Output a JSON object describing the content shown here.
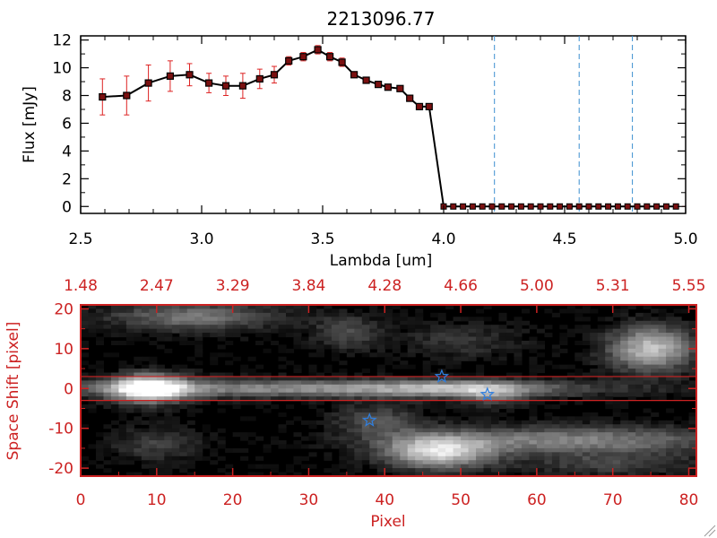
{
  "colors": {
    "axis_black": "#000000",
    "axis_red": "#cc2222",
    "errorbar_red": "#dd2222",
    "marker_fill": "#7a1010",
    "dash_blue": "#3b8fd0",
    "star_blue": "#2f7fe0",
    "spectrum_bg": "#000000"
  },
  "chart_data": [
    {
      "type": "line",
      "title": "2213096.77",
      "xlabel": "Lambda [um]",
      "ylabel": "Flux [mJy]",
      "xlim": [
        2.5,
        5.0
      ],
      "ylim": [
        -0.5,
        12.3
      ],
      "xticks": [
        {
          "value": 2.5,
          "label": "2.5"
        },
        {
          "value": 3.0,
          "label": "3.0"
        },
        {
          "value": 3.5,
          "label": "3.5"
        },
        {
          "value": 4.0,
          "label": "4.0"
        },
        {
          "value": 4.5,
          "label": "4.5"
        },
        {
          "value": 5.0,
          "label": "5.0"
        }
      ],
      "yticks": [
        {
          "value": 0,
          "label": "0"
        },
        {
          "value": 2,
          "label": "2"
        },
        {
          "value": 4,
          "label": "4"
        },
        {
          "value": 6,
          "label": "6"
        },
        {
          "value": 8,
          "label": "8"
        },
        {
          "value": 10,
          "label": "10"
        },
        {
          "value": 12,
          "label": "12"
        }
      ],
      "grid": false,
      "x": [
        2.59,
        2.69,
        2.78,
        2.87,
        2.95,
        3.03,
        3.1,
        3.17,
        3.24,
        3.3,
        3.36,
        3.42,
        3.48,
        3.53,
        3.58,
        3.63,
        3.68,
        3.73,
        3.77,
        3.82,
        3.86,
        3.9,
        3.94
      ],
      "y": [
        7.9,
        8.0,
        8.9,
        9.4,
        9.5,
        8.9,
        8.7,
        8.7,
        9.2,
        9.5,
        10.5,
        10.8,
        11.3,
        10.8,
        10.4,
        9.5,
        9.1,
        8.8,
        8.6,
        8.5,
        7.8,
        7.2,
        7.2
      ],
      "yerr": [
        1.3,
        1.4,
        1.3,
        1.1,
        0.8,
        0.7,
        0.7,
        0.9,
        0.7,
        0.6,
        0.3,
        0.3,
        0.3,
        0.3,
        0.3,
        0.2,
        0.2,
        0.2,
        0.2,
        0.2,
        0.2,
        0.2,
        0.2
      ],
      "drop_to_zero_at": 4.0,
      "zero_x": [
        4.0,
        4.04,
        4.08,
        4.12,
        4.16,
        4.2,
        4.24,
        4.28,
        4.32,
        4.36,
        4.4,
        4.44,
        4.48,
        4.52,
        4.56,
        4.6,
        4.64,
        4.68,
        4.72,
        4.76,
        4.8,
        4.84,
        4.88,
        4.92,
        4.96
      ],
      "vlines": [
        4.21,
        4.56,
        4.78
      ]
    },
    {
      "type": "heatmap",
      "xlabel": "Pixel",
      "ylabel": "Space Shift [pixel]",
      "xlim": [
        0,
        81
      ],
      "ylim": [
        -22,
        21
      ],
      "xticks": [
        {
          "value": 0,
          "label": "0"
        },
        {
          "value": 10,
          "label": "10"
        },
        {
          "value": 20,
          "label": "20"
        },
        {
          "value": 30,
          "label": "30"
        },
        {
          "value": 40,
          "label": "40"
        },
        {
          "value": 50,
          "label": "50"
        },
        {
          "value": 60,
          "label": "60"
        },
        {
          "value": 70,
          "label": "70"
        },
        {
          "value": 80,
          "label": "80"
        }
      ],
      "yticks": [
        {
          "value": 20,
          "label": "20"
        },
        {
          "value": 10,
          "label": "10"
        },
        {
          "value": 0,
          "label": "0"
        },
        {
          "value": -10,
          "label": "-10"
        },
        {
          "value": -20,
          "label": "-20"
        }
      ],
      "top_axis_labels": [
        {
          "pixel": 0,
          "label": "1.48"
        },
        {
          "pixel": 10,
          "label": "2.47"
        },
        {
          "pixel": 20,
          "label": "3.29"
        },
        {
          "pixel": 30,
          "label": "3.84"
        },
        {
          "pixel": 40,
          "label": "4.28"
        },
        {
          "pixel": 50,
          "label": "4.66"
        },
        {
          "pixel": 60,
          "label": "5.00"
        },
        {
          "pixel": 70,
          "label": "5.31"
        },
        {
          "pixel": 80,
          "label": "5.55"
        }
      ],
      "hlines": [
        3,
        -3
      ],
      "stars": [
        {
          "x": 47.5,
          "y": 3
        },
        {
          "x": 53.5,
          "y": -1.5
        },
        {
          "x": 38.0,
          "y": -8
        }
      ],
      "blobs": [
        {
          "x": 9,
          "y": 0,
          "sx": 3.5,
          "sy": 2.5,
          "amp": 1.0
        },
        {
          "x": 30,
          "y": 0,
          "sx": 25,
          "sy": 1.6,
          "amp": 0.55
        },
        {
          "x": 50,
          "y": 0,
          "sx": 8,
          "sy": 1.5,
          "amp": 0.35
        },
        {
          "x": 15,
          "y": 18,
          "sx": 8,
          "sy": 2.5,
          "amp": 0.45
        },
        {
          "x": 35,
          "y": 14,
          "sx": 3,
          "sy": 3,
          "amp": 0.3
        },
        {
          "x": 75,
          "y": 10,
          "sx": 4,
          "sy": 4,
          "amp": 0.75
        },
        {
          "x": 50,
          "y": 12,
          "sx": 6,
          "sy": 3,
          "amp": 0.2
        },
        {
          "x": 39,
          "y": -8,
          "sx": 4,
          "sy": 3,
          "amp": 0.3
        },
        {
          "x": 47,
          "y": -16,
          "sx": 5,
          "sy": 3,
          "amp": 0.8
        },
        {
          "x": 65,
          "y": -13,
          "sx": 15,
          "sy": 2.5,
          "amp": 0.5
        },
        {
          "x": 10,
          "y": -14,
          "sx": 4,
          "sy": 3,
          "amp": 0.25
        },
        {
          "x": 70,
          "y": -19,
          "sx": 8,
          "sy": 2,
          "amp": 0.25
        },
        {
          "x": 54,
          "y": -2,
          "sx": 3,
          "sy": 2,
          "amp": 0.3
        }
      ]
    }
  ]
}
